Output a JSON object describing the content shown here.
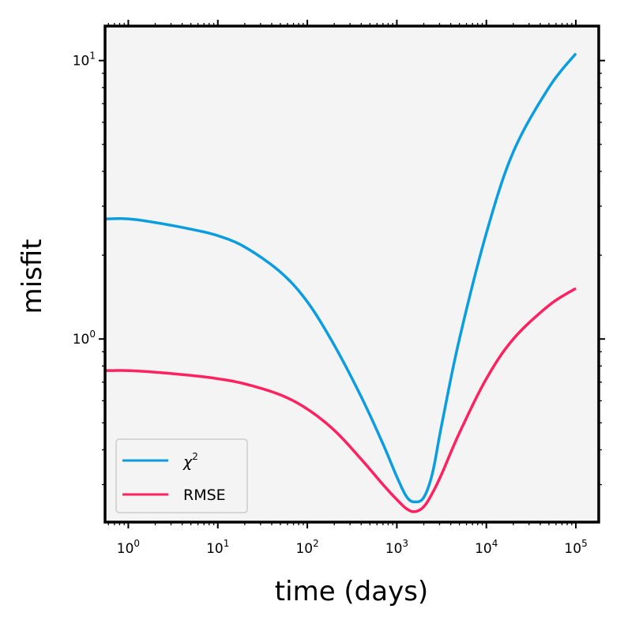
{
  "chart_data": {
    "type": "line",
    "xlabel": "time (days)",
    "ylabel": "misfit",
    "xscale": "log",
    "yscale": "log",
    "xlim": [
      0.55,
      180000
    ],
    "ylim": [
      0.22,
      13.3
    ],
    "x_ticks": [
      {
        "base": "10",
        "exp": "0",
        "value": 1
      },
      {
        "base": "10",
        "exp": "1",
        "value": 10
      },
      {
        "base": "10",
        "exp": "2",
        "value": 100
      },
      {
        "base": "10",
        "exp": "3",
        "value": 1000
      },
      {
        "base": "10",
        "exp": "4",
        "value": 10000
      },
      {
        "base": "10",
        "exp": "5",
        "value": 100000
      }
    ],
    "y_ticks": [
      {
        "base": "10",
        "exp": "0",
        "value": 1
      },
      {
        "base": "10",
        "exp": "1",
        "value": 10
      }
    ],
    "grid": false,
    "legend_position": "bottom-left",
    "background": "#f4f4f4",
    "series": [
      {
        "name": "χ²",
        "color": "#0b9ddf",
        "x": [
          0.55,
          1,
          2,
          5,
          10,
          20,
          50,
          100,
          200,
          400,
          700,
          1000,
          1300,
          1600,
          2000,
          2500,
          3200,
          5000,
          10000,
          20000,
          50000,
          100000
        ],
        "y": [
          2.7,
          2.7,
          2.62,
          2.48,
          2.35,
          2.14,
          1.74,
          1.36,
          0.95,
          0.62,
          0.42,
          0.32,
          0.27,
          0.26,
          0.27,
          0.33,
          0.5,
          1.0,
          2.4,
          4.7,
          8.0,
          10.6
        ]
      },
      {
        "name": "RMSE",
        "color": "#ff2160",
        "x": [
          0.55,
          1,
          2,
          5,
          10,
          20,
          50,
          100,
          200,
          400,
          700,
          1000,
          1300,
          1600,
          2000,
          2500,
          3200,
          5000,
          10000,
          20000,
          50000,
          100000
        ],
        "y": [
          0.77,
          0.77,
          0.76,
          0.74,
          0.72,
          0.69,
          0.63,
          0.56,
          0.47,
          0.37,
          0.3,
          0.265,
          0.245,
          0.24,
          0.25,
          0.28,
          0.33,
          0.46,
          0.72,
          1.0,
          1.32,
          1.52
        ]
      }
    ],
    "legend": {
      "entries": [
        {
          "label_main": "χ",
          "label_sup": "2"
        },
        {
          "label_main": "RMSE",
          "label_sup": ""
        }
      ]
    }
  }
}
